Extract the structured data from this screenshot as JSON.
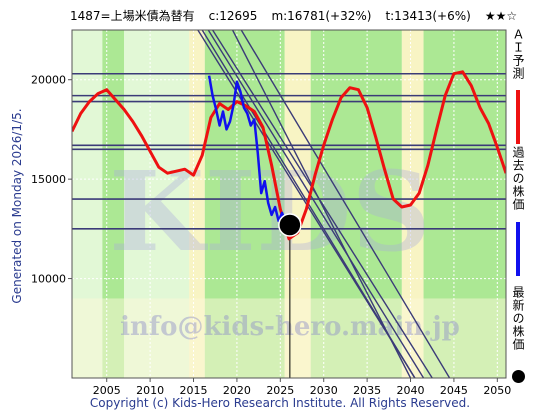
{
  "header": {
    "stock": "1487=上場米債為替有",
    "current": "c:12695",
    "mid": "m:16781(+32%)",
    "target": "t:13413(+6%)",
    "rating": "★★☆"
  },
  "generated": "Generated on Monday 2026/1/5.",
  "copyright": "Copyright (c) Kids-Hero Research Institute. All Rights Reserved.",
  "watermark": {
    "center": "KIDS",
    "bottom": "info@kids-hero.main.jp"
  },
  "legend": {
    "ai": "ＡＩ予測",
    "past": "過去の株価",
    "latest": "最新の株価"
  },
  "colors": {
    "ai": "#ee1111",
    "past": "#1111ee",
    "latest": "#000000",
    "band_green": "#90e070",
    "band_light": "#d8f5c8",
    "band_yellow": "#f6f0b0",
    "hline": "#3b3b78"
  },
  "chart_data": {
    "type": "line",
    "xlim": [
      2001,
      2051
    ],
    "ylim": [
      5000,
      22500
    ],
    "xticks": [
      "2005",
      "2010",
      "2015",
      "2020",
      "2025",
      "2030",
      "2035",
      "2040",
      "2045",
      "2050"
    ],
    "yticks": [
      "10000",
      "15000",
      "20000"
    ],
    "grid": true,
    "horizontal_levels": [
      20300,
      19200,
      18900,
      16700,
      16500,
      14000,
      12500
    ],
    "trend_channel_lines": [
      {
        "x": [
          2017.2,
          2042.5
        ],
        "y": [
          22500,
          5000
        ]
      },
      {
        "x": [
          2016.7,
          2041.5
        ],
        "y": [
          22500,
          5000
        ]
      },
      {
        "x": [
          2016.0,
          2040.5
        ],
        "y": [
          22500,
          5000
        ]
      },
      {
        "x": [
          2019.5,
          2040.0
        ],
        "y": [
          22500,
          5000
        ]
      },
      {
        "x": [
          2020.5,
          2044.5
        ],
        "y": [
          22500,
          5000
        ]
      },
      {
        "x": [
          2015.5,
          2040.5
        ],
        "y": [
          22500,
          5000
        ]
      }
    ],
    "series": [
      {
        "name": "ＡＩ予測",
        "x": [
          2001,
          2002,
          2003,
          2004,
          2005,
          2006,
          2007,
          2008,
          2009,
          2010,
          2011,
          2012,
          2013,
          2014,
          2015,
          2016,
          2017,
          2018,
          2019,
          2020,
          2021,
          2022,
          2023,
          2024,
          2025,
          2026,
          2027,
          2028,
          2029,
          2030,
          2031,
          2032,
          2033,
          2034,
          2035,
          2036,
          2037,
          2038,
          2039,
          2040,
          2041,
          2042,
          2043,
          2044,
          2045,
          2046,
          2047,
          2048,
          2049,
          2050,
          2051
        ],
        "y": [
          17400,
          18300,
          18900,
          19300,
          19500,
          19000,
          18500,
          17900,
          17200,
          16400,
          15600,
          15300,
          15400,
          15500,
          15200,
          16200,
          18100,
          18800,
          18500,
          18900,
          18700,
          18400,
          17600,
          15700,
          13500,
          12000,
          12300,
          13500,
          15200,
          16700,
          18000,
          19100,
          19600,
          19500,
          18600,
          17100,
          15500,
          14000,
          13600,
          13700,
          14300,
          15700,
          17500,
          19200,
          20300,
          20400,
          19700,
          18600,
          17800,
          16600,
          15300
        ]
      },
      {
        "name": "過去の株価",
        "x": [
          2016.8,
          2017.2,
          2017.6,
          2018.0,
          2018.4,
          2018.8,
          2019.2,
          2019.6,
          2020.0,
          2020.4,
          2020.8,
          2021.2,
          2021.6,
          2022.0,
          2022.4,
          2022.8,
          2023.2,
          2023.6,
          2024.0,
          2024.4,
          2024.8,
          2025.2,
          2025.6,
          2026.0
        ],
        "y": [
          20200,
          19200,
          18500,
          17700,
          18400,
          17500,
          17900,
          18700,
          19900,
          19400,
          18600,
          18300,
          17700,
          18000,
          16300,
          14300,
          14900,
          13800,
          13200,
          13600,
          12900,
          13300,
          12800,
          12695
        ]
      }
    ],
    "latest_point": {
      "x": 2026.1,
      "y": 12695
    }
  }
}
